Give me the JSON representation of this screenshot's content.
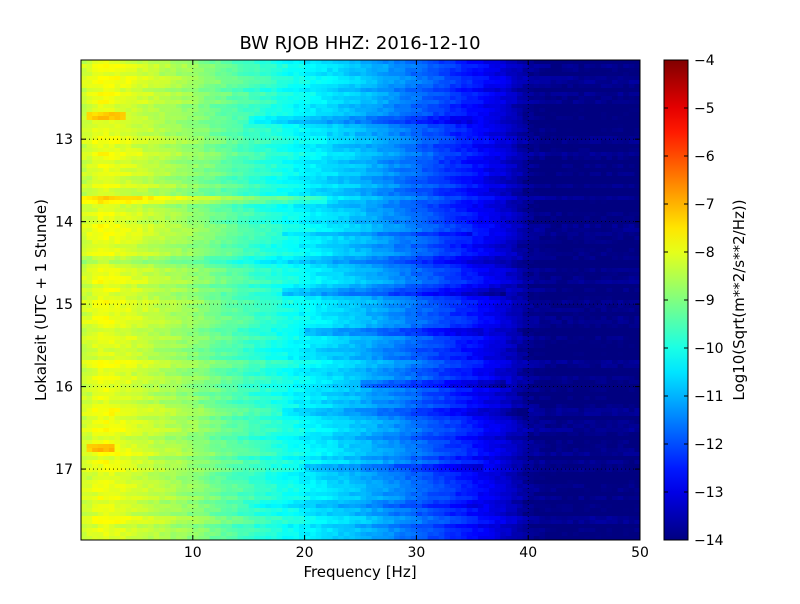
{
  "chart_data": {
    "type": "heatmap",
    "title": "BW RJOB HHZ: 2016-12-10",
    "xlabel": "Frequency [Hz]",
    "ylabel": "Lokalzeit (UTC + 1 Stunde)",
    "xlim": [
      0,
      50
    ],
    "ylim": [
      12.04,
      17.86
    ],
    "y_inverted": true,
    "x_ticks": [
      10,
      20,
      30,
      40,
      50
    ],
    "y_ticks": [
      13,
      14,
      15,
      16,
      17
    ],
    "grid": true,
    "colormap": "jet",
    "colorbar": {
      "label": "Log10(Sqrt(m**2/s**2/Hz))",
      "range": [
        -14,
        -4
      ],
      "ticks": [
        -4,
        -5,
        -6,
        -7,
        -8,
        -9,
        -10,
        -11,
        -12,
        -13,
        -14
      ]
    },
    "profile": {
      "x": [
        0,
        2,
        5,
        10,
        15,
        20,
        25,
        30,
        35,
        38,
        40,
        42,
        50
      ],
      "values": [
        -8.3,
        -7.9,
        -8.2,
        -8.8,
        -9.6,
        -10.3,
        -10.9,
        -11.7,
        -12.6,
        -13.2,
        -13.8,
        -14.0,
        -14.0
      ]
    },
    "disturbances": [
      {
        "y": 12.7,
        "x": [
          0.5,
          4
        ],
        "delta": 0.8
      },
      {
        "y": 12.77,
        "x": [
          15,
          35
        ],
        "delta": -0.5
      },
      {
        "y": 13.72,
        "x": [
          0,
          22
        ],
        "delta": 0.5
      },
      {
        "y": 14.15,
        "x": [
          18,
          35
        ],
        "delta": -0.5
      },
      {
        "y": 14.45,
        "x": [
          0,
          38
        ],
        "delta": -0.4
      },
      {
        "y": 14.85,
        "x": [
          18,
          38
        ],
        "delta": -0.6
      },
      {
        "y": 15.35,
        "x": [
          20,
          36
        ],
        "delta": -0.4
      },
      {
        "y": 15.95,
        "x": [
          25,
          38
        ],
        "delta": -0.5
      },
      {
        "y": 16.3,
        "x": [
          18,
          40
        ],
        "delta": -0.6
      },
      {
        "y": 16.75,
        "x": [
          0.5,
          3
        ],
        "delta": 0.8
      },
      {
        "y": 16.97,
        "x": [
          20,
          36
        ],
        "delta": -0.5
      },
      {
        "y": 17.45,
        "x": [
          15,
          36
        ],
        "delta": -0.4
      }
    ]
  }
}
